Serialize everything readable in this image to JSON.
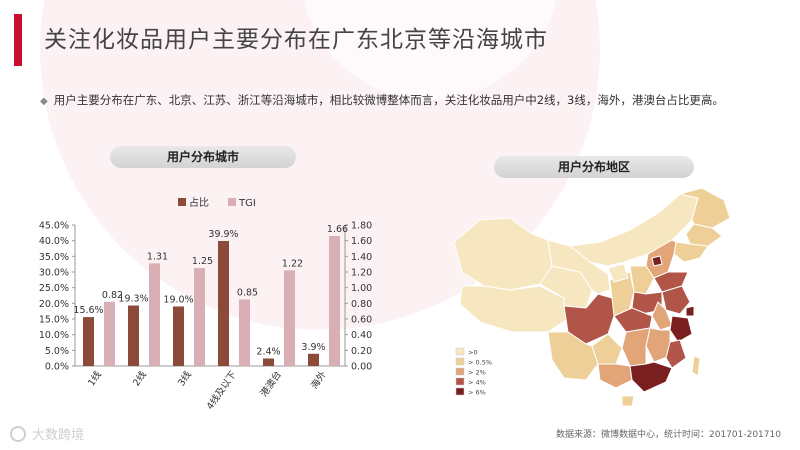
{
  "header": {
    "title": "关注化妆品用户主要分布在广东北京等沿海城市",
    "subtitle": "用户主要分布在广东、北京、江苏、浙江等沿海城市，相比较微博整体而言，关注化妆品用户中2线，3线，海外，港澳台占比更高。"
  },
  "left_panel": {
    "label": "用户分布城市"
  },
  "right_panel": {
    "label": "用户分布地区"
  },
  "chart_data": [
    {
      "type": "bar",
      "categories": [
        "1线",
        "2线",
        "3线",
        "4线及以下",
        "港澳台",
        "海外"
      ],
      "series": [
        {
          "name": "占比",
          "axis": "left",
          "values": [
            15.6,
            19.3,
            19.0,
            39.9,
            2.4,
            3.9
          ],
          "labels": [
            "15.6%",
            "19.3%",
            "19.0%",
            "39.9%",
            "2.4%",
            "3.9%"
          ],
          "color": "#8b4a3a"
        },
        {
          "name": "TGI",
          "axis": "right",
          "values": [
            0.82,
            1.31,
            1.25,
            0.85,
            1.22,
            1.66
          ],
          "labels": [
            "0.82",
            "1.31",
            "1.25",
            "0.85",
            "1.22",
            "1.66"
          ],
          "color": "#d9aeb5"
        }
      ],
      "y_left": {
        "min": 0,
        "max": 45,
        "ticks": [
          "0.0%",
          "5.0%",
          "10.0%",
          "15.0%",
          "20.0%",
          "25.0%",
          "30.0%",
          "35.0%",
          "40.0%",
          "45.0%"
        ]
      },
      "y_right": {
        "min": 0,
        "max": 1.8,
        "ticks": [
          "0.00",
          "0.20",
          "0.40",
          "0.60",
          "0.80",
          "1.00",
          "1.20",
          "1.40",
          "1.60",
          "1.80"
        ]
      },
      "legend": "top"
    },
    {
      "type": "choropleth",
      "legend": [
        {
          "label": ">0",
          "color": "#f6e7c0"
        },
        {
          "label": "> 0.5%",
          "color": "#eecf98"
        },
        {
          "label": "> 2%",
          "color": "#e2a577"
        },
        {
          "label": "> 4%",
          "color": "#b05547"
        },
        {
          "label": "> 6%",
          "color": "#7a1f1f"
        }
      ]
    }
  ],
  "footer": {
    "source": "数据来源：微博数据中心，统计时间：201701-201710",
    "logo_text": "大数跨境"
  }
}
